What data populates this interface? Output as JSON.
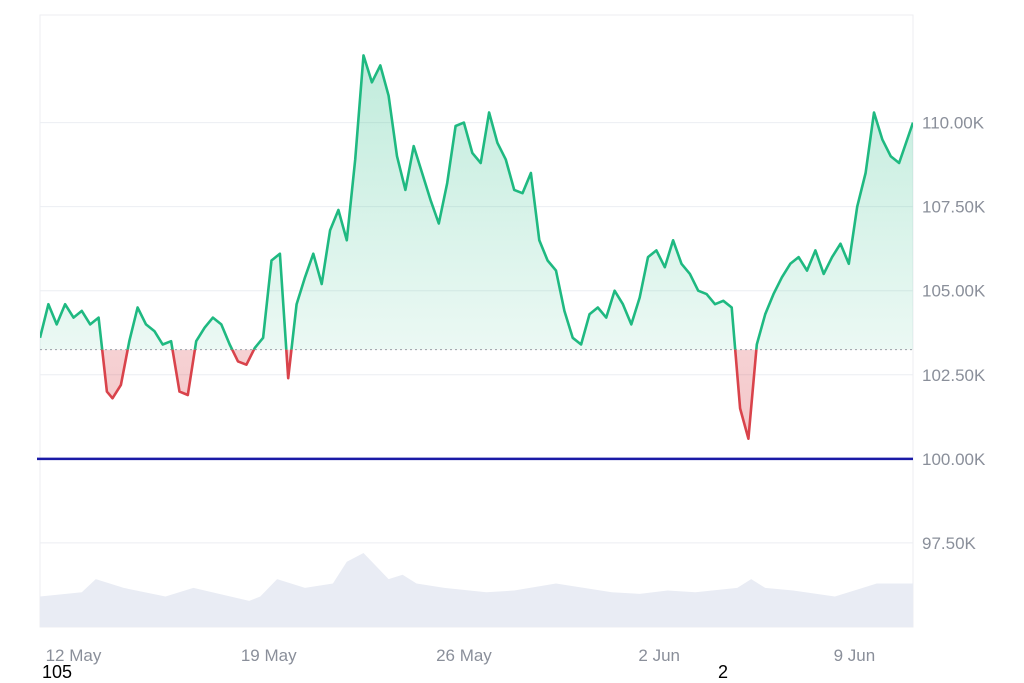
{
  "chart_data": {
    "type": "area",
    "baseline_value": 103.25,
    "reference_line": {
      "value": 100.0,
      "color": "#1a1aa6"
    },
    "colors": {
      "above": "#1fb981",
      "below": "#d9434b",
      "volume": "#e9ecf4",
      "grid": "#eceef2"
    },
    "ylim": [
      95.0,
      113.2
    ],
    "xlim": [
      0,
      31.3
    ],
    "y_ticks": [
      {
        "value": 97.5,
        "label": "97.50K"
      },
      {
        "value": 100.0,
        "label": "100.00K"
      },
      {
        "value": 102.5,
        "label": "102.50K"
      },
      {
        "value": 105.0,
        "label": "105.00K"
      },
      {
        "value": 107.5,
        "label": "107.50K"
      },
      {
        "value": 110.0,
        "label": "110.00K"
      }
    ],
    "x_ticks": [
      {
        "value": 1.2,
        "label": "12 May"
      },
      {
        "value": 8.2,
        "label": "19 May"
      },
      {
        "value": 15.2,
        "label": "26 May"
      },
      {
        "value": 22.2,
        "label": "2 Jun"
      },
      {
        "value": 29.2,
        "label": "9 Jun"
      }
    ],
    "series": [
      {
        "x": [
          0,
          0.3,
          0.6,
          0.9,
          1.2,
          1.5,
          1.8,
          2.1,
          2.4,
          2.6,
          2.9,
          3.2,
          3.5,
          3.8,
          4.1,
          4.4,
          4.7,
          5.0,
          5.3,
          5.6,
          5.9,
          6.2,
          6.5,
          6.8,
          7.1,
          7.4,
          7.7,
          8.0,
          8.3,
          8.6,
          8.9,
          9.2,
          9.5,
          9.8,
          10.1,
          10.4,
          10.7,
          11.0,
          11.3,
          11.6,
          11.9,
          12.2,
          12.5,
          12.8,
          13.1,
          13.4,
          13.7,
          14.0,
          14.3,
          14.6,
          14.9,
          15.2,
          15.5,
          15.8,
          16.1,
          16.4,
          16.7,
          17.0,
          17.3,
          17.6,
          17.9,
          18.2,
          18.5,
          18.8,
          19.1,
          19.4,
          19.7,
          20.0,
          20.3,
          20.6,
          20.9,
          21.2,
          21.5,
          21.8,
          22.1,
          22.4,
          22.7,
          23.0,
          23.3,
          23.6,
          23.9,
          24.2,
          24.5,
          24.8,
          25.1,
          25.4,
          25.7,
          26.0,
          26.3,
          26.6,
          26.9,
          27.2,
          27.5,
          27.8,
          28.1,
          28.4,
          28.7,
          29.0,
          29.3,
          29.6,
          29.9,
          30.2,
          30.5,
          30.8,
          31.3
        ],
        "y": [
          103.6,
          104.6,
          104.0,
          104.6,
          104.2,
          104.4,
          104.0,
          104.2,
          102.0,
          101.8,
          102.2,
          103.5,
          104.5,
          104.0,
          103.8,
          103.4,
          103.5,
          102.0,
          101.9,
          103.5,
          103.9,
          104.2,
          104.0,
          103.4,
          102.9,
          102.8,
          103.3,
          103.6,
          105.9,
          106.1,
          102.4,
          104.6,
          105.4,
          106.1,
          105.2,
          106.8,
          107.4,
          106.5,
          108.9,
          112.0,
          111.2,
          111.7,
          110.8,
          109.0,
          108.0,
          109.3,
          108.5,
          107.7,
          107.0,
          108.2,
          109.9,
          110.0,
          109.1,
          108.8,
          110.3,
          109.4,
          108.9,
          108.0,
          107.9,
          108.5,
          106.5,
          105.9,
          105.6,
          104.4,
          103.6,
          103.4,
          104.3,
          104.5,
          104.2,
          105.0,
          104.6,
          104.0,
          104.8,
          106.0,
          106.2,
          105.7,
          106.5,
          105.8,
          105.5,
          105.0,
          104.9,
          104.6,
          104.7,
          104.5,
          101.5,
          100.6,
          103.4,
          104.3,
          104.9,
          105.4,
          105.8,
          106.0,
          105.6,
          106.2,
          105.5,
          106.0,
          106.4,
          105.8,
          107.5,
          108.5,
          110.3,
          109.5,
          109.0,
          108.8,
          110.0
        ]
      }
    ],
    "volume": {
      "x": [
        0,
        1.5,
        2.0,
        3.0,
        4.5,
        5.5,
        7.5,
        7.9,
        8.5,
        9.5,
        10.5,
        11.0,
        11.6,
        12.5,
        13.0,
        13.5,
        14.5,
        16.0,
        17.0,
        18.5,
        19.5,
        20.5,
        21.5,
        22.5,
        23.5,
        25.0,
        25.5,
        26.0,
        27.0,
        28.5,
        29.5,
        30.0,
        31.3
      ],
      "y": [
        0.35,
        0.4,
        0.55,
        0.45,
        0.35,
        0.45,
        0.3,
        0.35,
        0.55,
        0.45,
        0.5,
        0.75,
        0.85,
        0.55,
        0.6,
        0.5,
        0.45,
        0.4,
        0.42,
        0.5,
        0.45,
        0.4,
        0.38,
        0.42,
        0.4,
        0.45,
        0.55,
        0.45,
        0.42,
        0.35,
        0.45,
        0.5,
        0.5
      ]
    }
  },
  "footer": {
    "left_label": "105",
    "mid_label": "2"
  }
}
